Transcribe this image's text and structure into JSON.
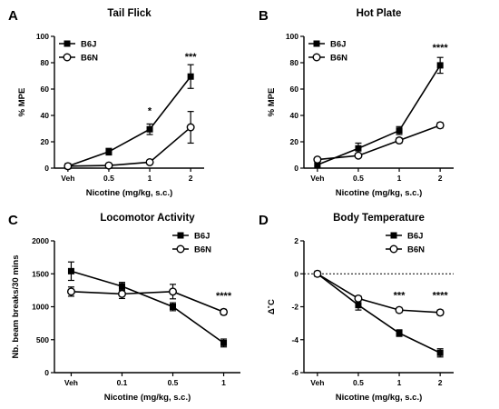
{
  "chart_data": [
    {
      "panel": "A",
      "type": "line",
      "title": "Tail Flick",
      "xlabel": "Nicotine (mg/kg, s.c.)",
      "ylabel": "% MPE",
      "categories": [
        "Veh",
        "0.5",
        "1",
        "2"
      ],
      "ylim": [
        0,
        100
      ],
      "yticks": [
        0,
        20,
        40,
        60,
        80,
        100
      ],
      "legend_position": "top-left",
      "series": [
        {
          "name": "B6J",
          "marker": "filled-square",
          "values": [
            1.5,
            12.5,
            29.5,
            69.5
          ],
          "errors": [
            0.8,
            2.5,
            4,
            9
          ]
        },
        {
          "name": "B6N",
          "marker": "open-circle",
          "values": [
            1.5,
            2,
            4.5,
            31
          ],
          "errors": [
            0.5,
            1,
            1.5,
            12
          ]
        }
      ],
      "annotations": [
        {
          "category": "1",
          "text": "*",
          "y": 41
        },
        {
          "category": "2",
          "text": "***",
          "y": 82
        }
      ]
    },
    {
      "panel": "B",
      "type": "line",
      "title": "Hot Plate",
      "xlabel": "Nicotine (mg/kg, s.c.)",
      "ylabel": "% MPE",
      "categories": [
        "Veh",
        "0.5",
        "1",
        "2"
      ],
      "ylim": [
        0,
        100
      ],
      "yticks": [
        0,
        20,
        40,
        60,
        80,
        100
      ],
      "legend_position": "top-left",
      "series": [
        {
          "name": "B6J",
          "marker": "filled-square",
          "values": [
            2.5,
            15,
            28.5,
            78
          ],
          "errors": [
            1,
            4,
            3,
            6
          ]
        },
        {
          "name": "B6N",
          "marker": "open-circle",
          "values": [
            6.5,
            9.5,
            21,
            32.5
          ],
          "errors": [
            1,
            1.5,
            2,
            2
          ]
        }
      ],
      "annotations": [
        {
          "category": "2",
          "text": "****",
          "y": 89
        }
      ]
    },
    {
      "panel": "C",
      "type": "line",
      "title": "Locomotor Activity",
      "xlabel": "Nicotine (mg/kg, s.c.)",
      "ylabel": "Nb. beam breaks/30 mins",
      "categories": [
        "Veh",
        "0.1",
        "0.5",
        "1"
      ],
      "ylim": [
        0,
        2000
      ],
      "yticks": [
        0,
        500,
        1000,
        1500,
        2000
      ],
      "legend_position": "top-right",
      "series": [
        {
          "name": "B6J",
          "marker": "filled-square",
          "values": [
            1540,
            1310,
            1000,
            450
          ],
          "errors": [
            140,
            60,
            60,
            60
          ]
        },
        {
          "name": "B6N",
          "marker": "open-circle",
          "values": [
            1230,
            1195,
            1230,
            920
          ],
          "errors": [
            70,
            70,
            110,
            40
          ]
        }
      ],
      "annotations": [
        {
          "category": "1",
          "text": "****",
          "y": 1120
        }
      ]
    },
    {
      "panel": "D",
      "type": "line",
      "title": "Body Temperature",
      "xlabel": "Nicotine (mg/kg, s.c.)",
      "ylabel": "Δ˚C",
      "categories": [
        "Veh",
        "0.5",
        "1",
        "2"
      ],
      "ylim": [
        -6,
        2
      ],
      "yticks": [
        -6,
        -4,
        -2,
        0,
        2
      ],
      "reference_line": 0,
      "legend_position": "top-right",
      "series": [
        {
          "name": "B6J",
          "marker": "filled-square",
          "values": [
            0,
            -1.9,
            -3.6,
            -4.8
          ],
          "errors": [
            0.1,
            0.3,
            0.2,
            0.25
          ]
        },
        {
          "name": "B6N",
          "marker": "open-circle",
          "values": [
            0,
            -1.5,
            -2.2,
            -2.35
          ],
          "errors": [
            0.1,
            0.15,
            0.15,
            0.15
          ]
        }
      ],
      "annotations": [
        {
          "category": "1",
          "text": "***",
          "y": -1.5
        },
        {
          "category": "2",
          "text": "****",
          "y": -1.5
        }
      ]
    }
  ]
}
